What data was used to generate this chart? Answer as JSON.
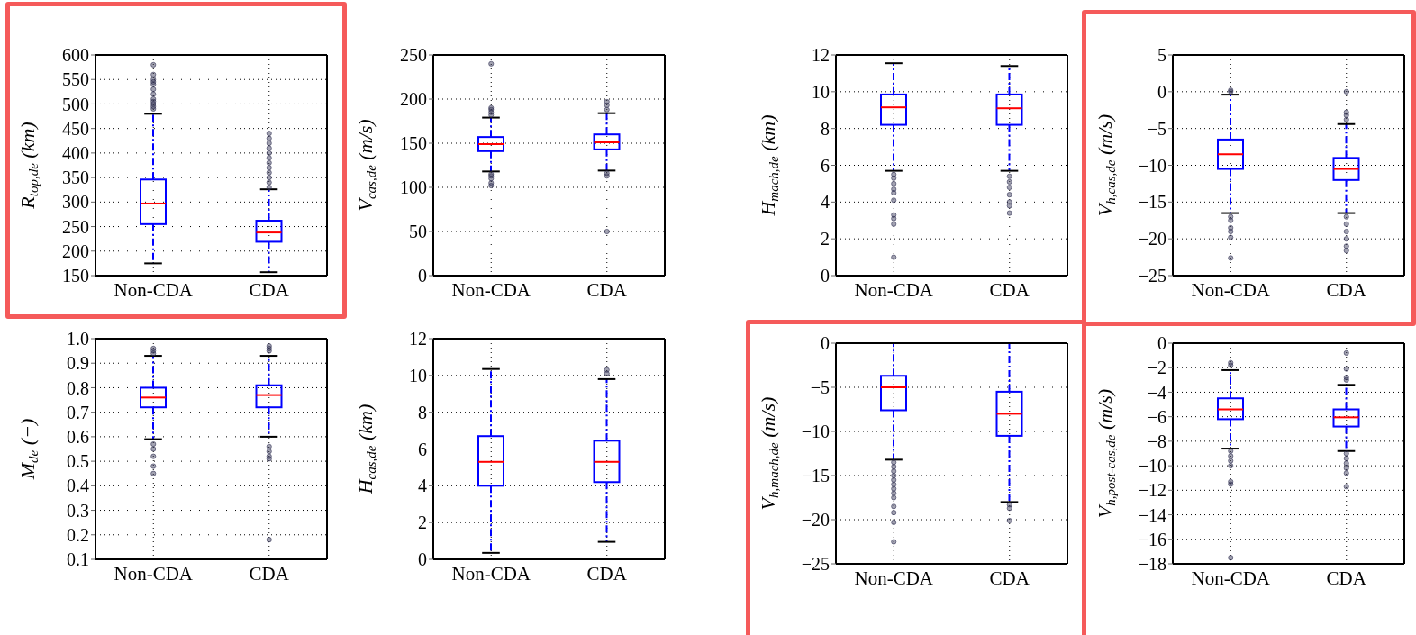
{
  "chart_data": [
    {
      "type": "box",
      "ylabel": "R$_{top,de}$ (km)",
      "categories": [
        "Non-CDA",
        "CDA"
      ],
      "ylim": [
        150,
        600
      ],
      "yticks": [
        150,
        200,
        250,
        300,
        350,
        400,
        450,
        500,
        550,
        600
      ],
      "grid": true,
      "series": [
        {
          "color": "#0000ff",
          "boxes": [
            {
              "low": 175,
              "q1": 255,
              "median": 297,
              "q3": 346,
              "high": 480,
              "outliers": [
                490,
                495,
                500,
                505,
                510,
                520,
                530,
                540,
                545,
                550,
                560,
                580
              ]
            },
            {
              "low": 157,
              "q1": 219,
              "median": 238,
              "q3": 262,
              "high": 326,
              "outliers": [
                330,
                340,
                350,
                360,
                370,
                380,
                390,
                400,
                410,
                420,
                430,
                440
              ]
            }
          ]
        }
      ]
    },
    {
      "type": "box",
      "ylabel": "V$_{cas,de}$ (m/s)",
      "categories": [
        "Non-CDA",
        "CDA"
      ],
      "ylim": [
        0,
        250
      ],
      "yticks": [
        0,
        50,
        100,
        150,
        200,
        250
      ],
      "grid": true,
      "series": [
        {
          "color": "#0000ff",
          "boxes": [
            {
              "low": 118,
              "q1": 141,
              "median": 149,
              "q3": 157,
              "high": 179,
              "outliers": [
                102,
                105,
                110,
                113,
                115,
                182,
                185,
                188,
                190,
                240
              ]
            },
            {
              "low": 119,
              "q1": 143,
              "median": 151,
              "q3": 160,
              "high": 184,
              "outliers": [
                50,
                113,
                116,
                188,
                193,
                197
              ]
            }
          ]
        }
      ]
    },
    {
      "type": "box",
      "ylabel": "H$_{mach,de}$ (km)",
      "categories": [
        "Non-CDA",
        "CDA"
      ],
      "ylim": [
        0,
        12
      ],
      "yticks": [
        0,
        2,
        4,
        6,
        8,
        10,
        12
      ],
      "grid": true,
      "series": [
        {
          "color": "#0000ff",
          "boxes": [
            {
              "low": 5.7,
              "q1": 8.2,
              "median": 9.15,
              "q3": 9.85,
              "high": 11.55,
              "outliers": [
                1.0,
                2.8,
                3.1,
                3.3,
                4.1,
                4.5,
                4.7,
                5.0,
                5.3,
                5.5
              ]
            },
            {
              "low": 5.7,
              "q1": 8.2,
              "median": 9.1,
              "q3": 9.85,
              "high": 11.4,
              "outliers": [
                3.4,
                3.8,
                4.0,
                4.4,
                4.8,
                5.1,
                5.4
              ]
            }
          ]
        }
      ]
    },
    {
      "type": "box",
      "ylabel": "V$_{h,cas,de}$ (m/s)",
      "categories": [
        "Non-CDA",
        "CDA"
      ],
      "ylim": [
        -25,
        5
      ],
      "yticks": [
        -25,
        -20,
        -15,
        -10,
        -5,
        0,
        5
      ],
      "grid": true,
      "series": [
        {
          "color": "#0000ff",
          "boxes": [
            {
              "low": -16.5,
              "q1": -10.5,
              "median": -8.5,
              "q3": -6.5,
              "high": -0.4,
              "outliers": [
                0,
                0.2,
                -17,
                -17.5,
                -18.5,
                -19,
                -19.8,
                -22.6
              ]
            },
            {
              "low": -16.5,
              "q1": -12,
              "median": -10.5,
              "q3": -9,
              "high": -4.4,
              "outliers": [
                0,
                -2.8,
                -3.2,
                -3.8,
                -17,
                -18,
                -19,
                -20,
                -21,
                -21.6
              ]
            }
          ]
        }
      ]
    },
    {
      "type": "box",
      "ylabel": "M$_{de}$ (−)",
      "categories": [
        "Non-CDA",
        "CDA"
      ],
      "ylim": [
        0.1,
        1.0
      ],
      "yticks": [
        0.1,
        0.2,
        0.3,
        0.4,
        0.5,
        0.6,
        0.7,
        0.8,
        0.9,
        {
          "value": 1,
          "label": "1.0"
        }
      ],
      "grid": true,
      "series": [
        {
          "color": "#0000ff",
          "boxes": [
            {
              "low": 0.59,
              "q1": 0.72,
              "median": 0.76,
              "q3": 0.8,
              "high": 0.93,
              "outliers": [
                0.45,
                0.48,
                0.52,
                0.55,
                0.57,
                0.94,
                0.95,
                0.96
              ]
            },
            {
              "low": 0.6,
              "q1": 0.72,
              "median": 0.77,
              "q3": 0.81,
              "high": 0.93,
              "outliers": [
                0.18,
                0.51,
                0.52,
                0.54,
                0.56,
                0.95,
                0.96,
                0.97
              ]
            }
          ]
        }
      ]
    },
    {
      "type": "box",
      "ylabel": "H$_{cas,de}$ (km)",
      "categories": [
        "Non-CDA",
        "CDA"
      ],
      "ylim": [
        0,
        12
      ],
      "yticks": [
        0,
        2,
        4,
        6,
        8,
        10,
        12
      ],
      "grid": true,
      "series": [
        {
          "color": "#0000ff",
          "boxes": [
            {
              "low": 0.35,
              "q1": 4.0,
              "median": 5.3,
              "q3": 6.7,
              "high": 10.35
            },
            {
              "low": 0.95,
              "q1": 4.2,
              "median": 5.3,
              "q3": 6.45,
              "high": 9.8,
              "outliers": [
                10.1,
                10.3
              ]
            }
          ]
        }
      ]
    },
    {
      "type": "box",
      "ylabel": "V$_{h,mach,de}$ (m/s)",
      "categories": [
        "Non-CDA",
        "CDA"
      ],
      "ylim": [
        -25,
        0
      ],
      "yticks": [
        -25,
        -20,
        -15,
        -10,
        -5,
        0
      ],
      "grid": true,
      "series": [
        {
          "color": "#0000ff",
          "boxes": [
            {
              "low": -13.2,
              "q1": -7.6,
              "median": -5,
              "q3": -3.7,
              "high": 0,
              "outliers": [
                -13.5,
                -14,
                -14.5,
                -15,
                -15.5,
                -16,
                -16.5,
                -17,
                -17.5,
                -18.5,
                -19.2,
                -20.3,
                -22.5
              ]
            },
            {
              "low": -18,
              "q1": -10.5,
              "median": -8,
              "q3": -5.5,
              "high": 0,
              "outliers": [
                -18.3,
                -18.7,
                -20.1
              ]
            }
          ]
        }
      ]
    },
    {
      "type": "box",
      "ylabel": "V$_{h,post-cas,de}$ (m/s)",
      "categories": [
        "Non-CDA",
        "CDA"
      ],
      "ylim": [
        -18,
        0
      ],
      "yticks": [
        -18,
        -16,
        -14,
        -12,
        -10,
        -8,
        -6,
        -4,
        -2,
        0
      ],
      "grid": true,
      "series": [
        {
          "color": "#0000ff",
          "boxes": [
            {
              "low": -8.6,
              "q1": -6.2,
              "median": -5.4,
              "q3": -4.5,
              "high": -2.2,
              "outliers": [
                -1.6,
                -1.8,
                -8.8,
                -9.2,
                -9.6,
                -10,
                -11.3,
                -11.5,
                -17.5
              ]
            },
            {
              "low": -8.8,
              "q1": -6.8,
              "median": -6.05,
              "q3": -5.4,
              "high": -3.4,
              "outliers": [
                -0.8,
                -2.1,
                -2.8,
                -3.0,
                -9.0,
                -9.4,
                -9.8,
                -10.2,
                -10.6,
                -11.7
              ]
            }
          ]
        }
      ]
    }
  ]
}
